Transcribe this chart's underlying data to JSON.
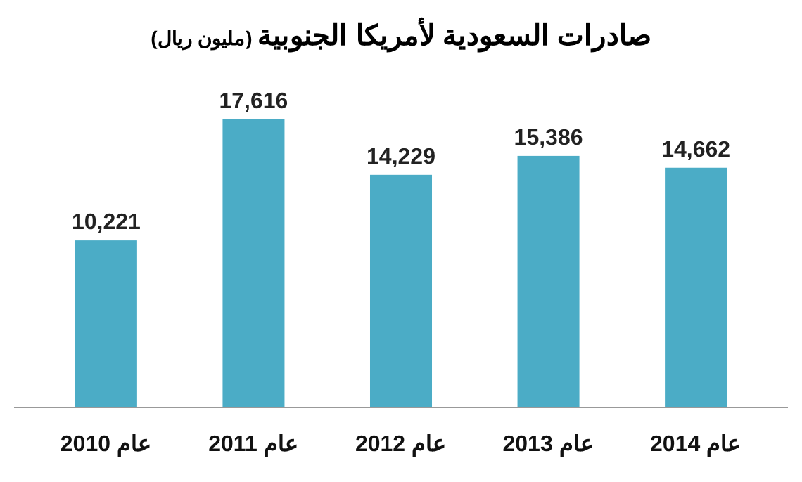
{
  "chart_data": {
    "type": "bar",
    "title": "صادرات السعودية لأمريكا الجنوبية",
    "subtitle": "(مليون ريال)",
    "categories": [
      "عام 2010",
      "عام 2011",
      "عام 2012",
      "عام 2013",
      "عام 2014"
    ],
    "values": [
      10221,
      17616,
      14229,
      15386,
      14662
    ],
    "value_labels": [
      "10,221",
      "17,616",
      "14,229",
      "15,386",
      "14,662"
    ],
    "color": "#4bacc6",
    "data_labels": true
  }
}
